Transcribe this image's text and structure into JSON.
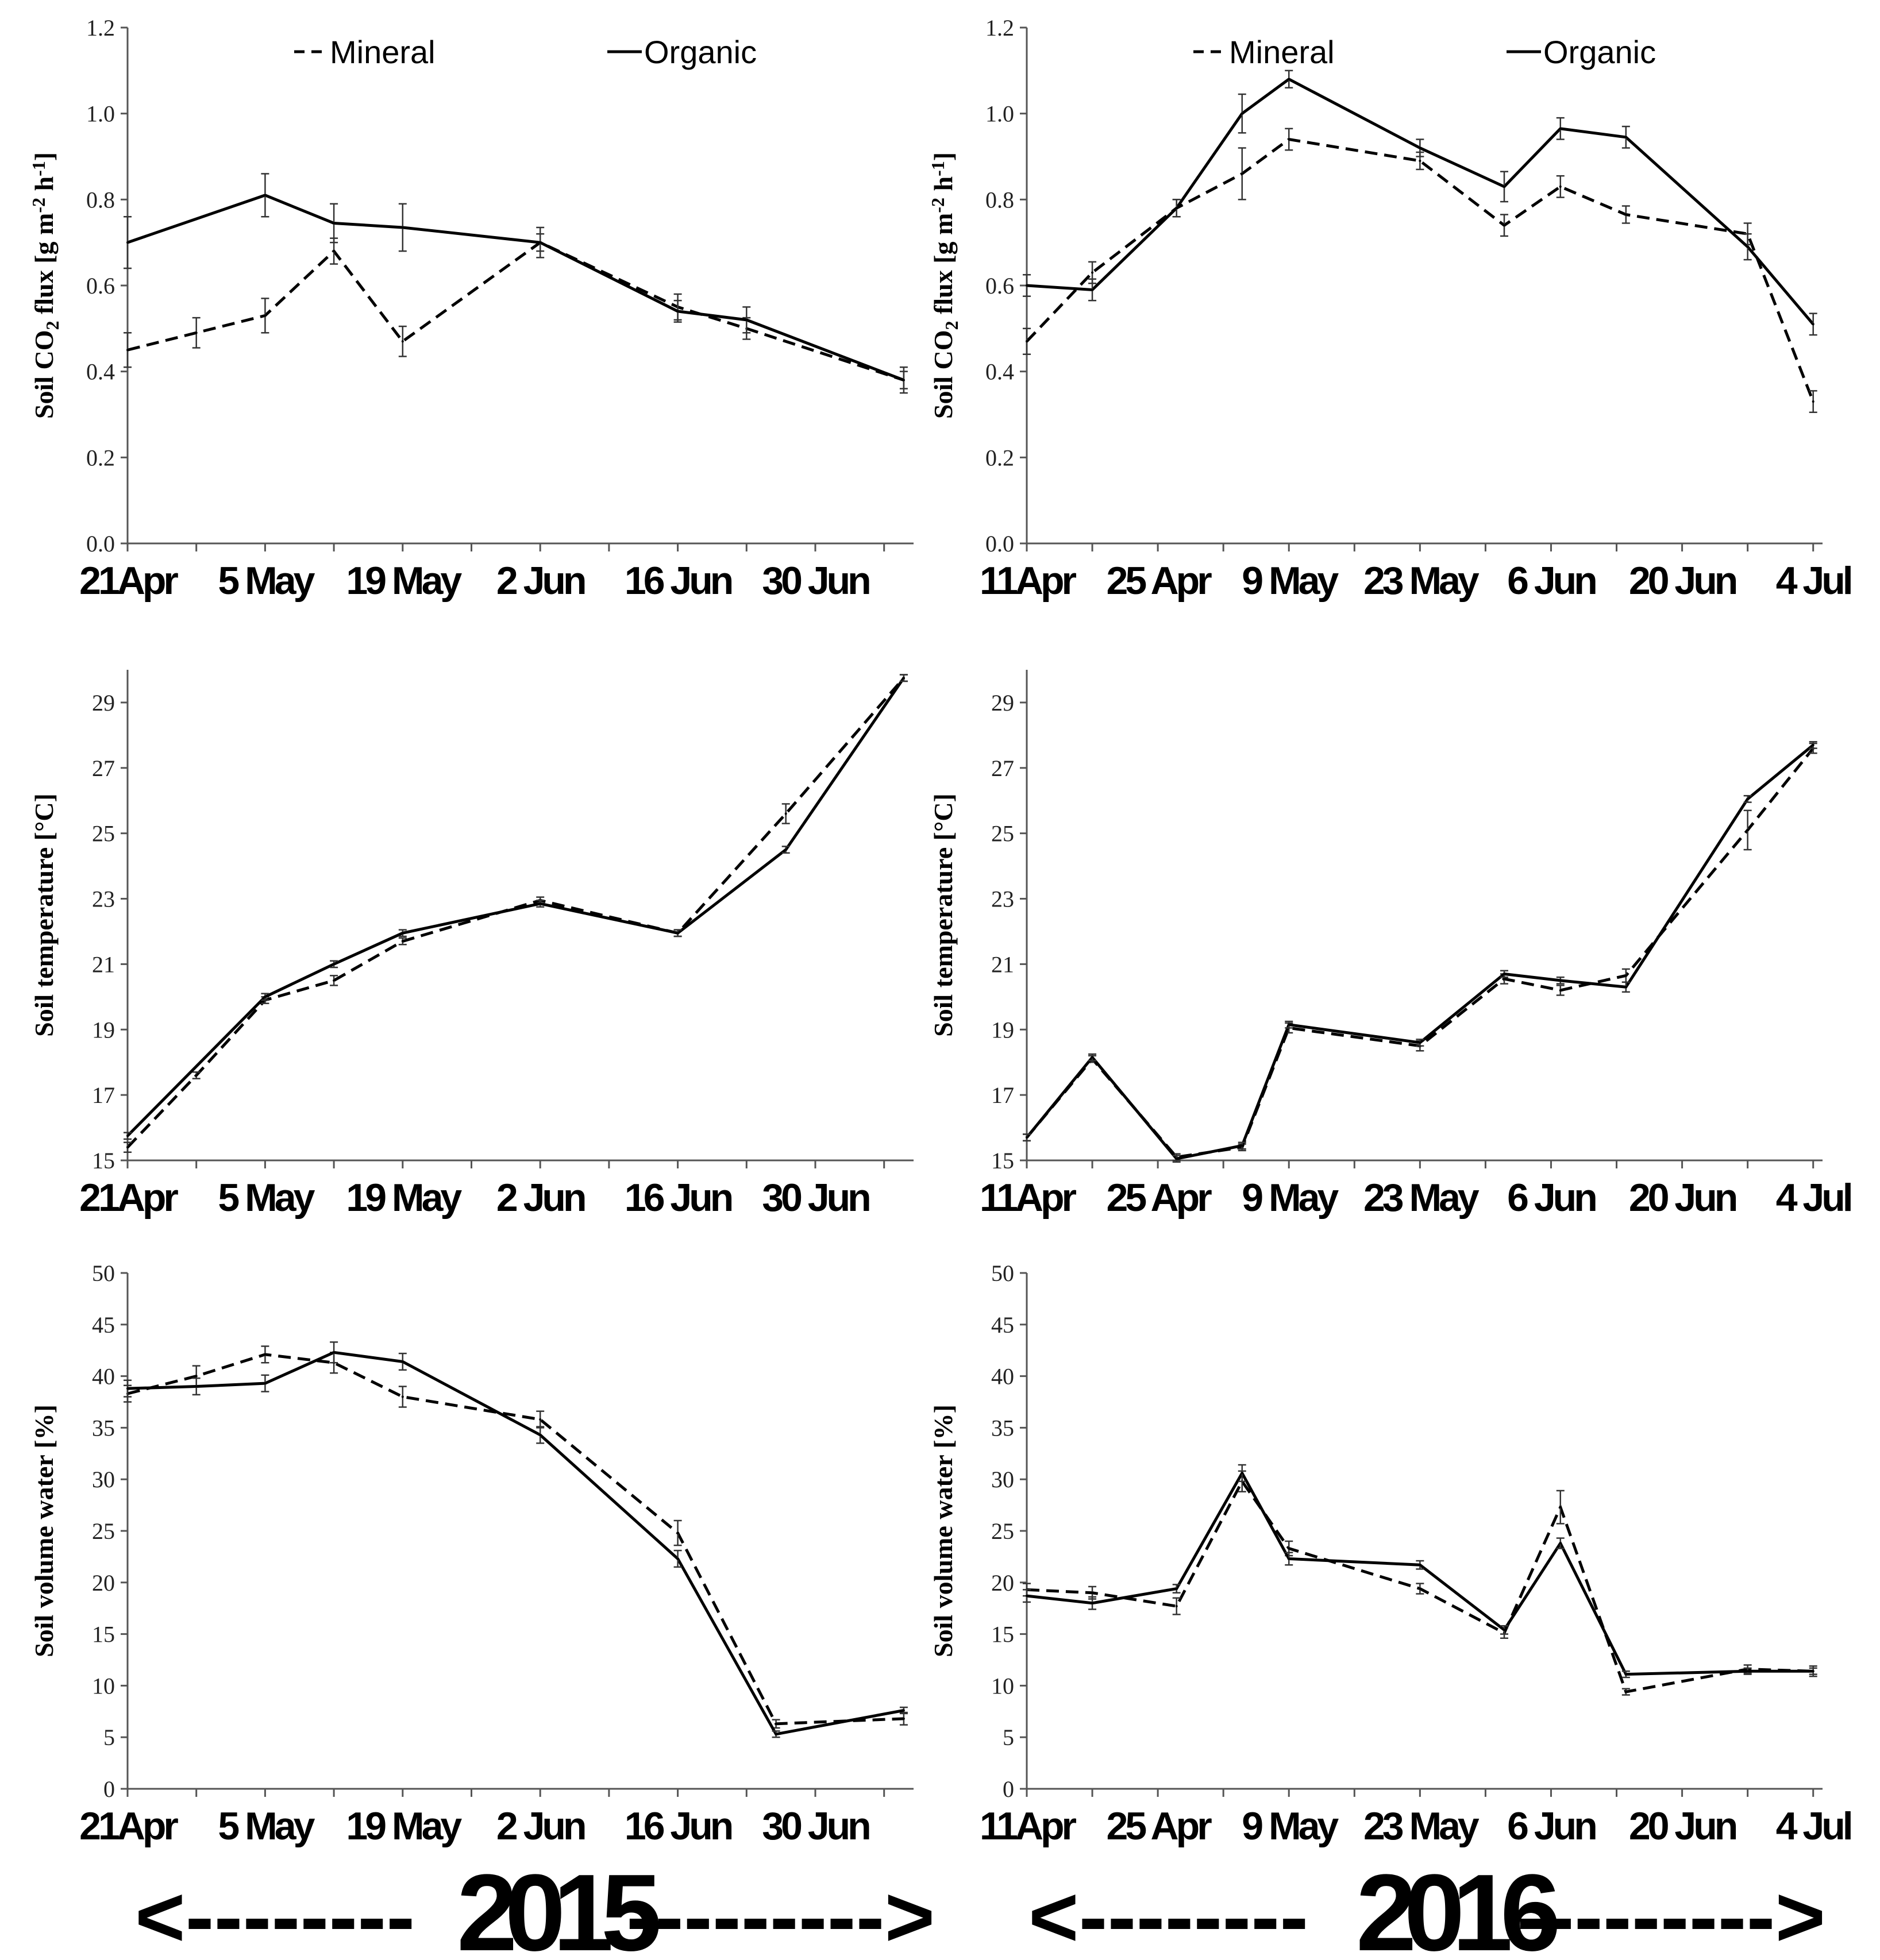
{
  "legend": {
    "mineral": "Mineral",
    "organic": "Organic"
  },
  "years": [
    {
      "label": "2015",
      "arrow_left": "<--------",
      "arrow_right": "--------->"
    },
    {
      "label": "2016",
      "arrow_left": "<--------",
      "arrow_right": "--------->"
    }
  ],
  "colors": {
    "line": "#000000",
    "axis": "#555555"
  },
  "chart_data": [
    {
      "id": "co2-2015",
      "type": "line",
      "year": "2015",
      "ylabel_main": "Soil CO",
      "ylabel_sub": "2",
      "ylabel_rest": " flux [g m",
      "ylabel_sup1": "-2",
      "ylabel_mid": " h",
      "ylabel_sup2": "-1",
      "ylabel_end": "]",
      "xlim": [
        0,
        80
      ],
      "ylim": [
        0,
        1.2
      ],
      "yticks": [
        "0.0",
        "0.2",
        "0.4",
        "0.6",
        "0.8",
        "1.0",
        "1.2"
      ],
      "ytick_values": [
        0,
        0.2,
        0.4,
        0.6,
        0.8,
        1.0,
        1.2
      ],
      "xtick_positions": [
        0,
        7,
        14,
        21,
        28,
        35,
        42,
        49,
        56,
        63,
        70,
        77
      ],
      "xlabels": [
        "21Apr",
        "5 May",
        "19 May",
        "2 Jun",
        "16 Jun",
        "30 Jun"
      ],
      "xlabel_positions": [
        0,
        14,
        28,
        42,
        56,
        70
      ],
      "series": [
        {
          "name": "Mineral",
          "dash": true,
          "x": [
            0,
            7,
            14,
            21,
            28,
            42,
            56,
            63,
            79
          ],
          "y": [
            0.45,
            0.49,
            0.53,
            0.68,
            0.47,
            0.7,
            0.55,
            0.5,
            0.38
          ],
          "err": [
            0.04,
            0.035,
            0.04,
            0.03,
            0.035,
            0.02,
            0.03,
            0.025,
            0.03
          ]
        },
        {
          "name": "Organic",
          "dash": false,
          "x": [
            0,
            14,
            21,
            28,
            42,
            56,
            63,
            79
          ],
          "y": [
            0.7,
            0.81,
            0.745,
            0.735,
            0.7,
            0.54,
            0.52,
            0.38
          ],
          "err": [
            0.06,
            0.05,
            0.045,
            0.055,
            0.035,
            0.025,
            0.03,
            0.02
          ]
        }
      ]
    },
    {
      "id": "co2-2016",
      "type": "line",
      "year": "2016",
      "ylabel_main": "Soil CO",
      "ylabel_sub": "2",
      "ylabel_rest": " flux [g m",
      "ylabel_sup1": "-2",
      "ylabel_mid": " h",
      "ylabel_sup2": "-1",
      "ylabel_end": "]",
      "xlim": [
        0,
        85
      ],
      "ylim": [
        0,
        1.2
      ],
      "yticks": [
        "0.0",
        "0.2",
        "0.4",
        "0.6",
        "0.8",
        "1.0",
        "1.2"
      ],
      "ytick_values": [
        0,
        0.2,
        0.4,
        0.6,
        0.8,
        1.0,
        1.2
      ],
      "xtick_positions": [
        0,
        7,
        14,
        21,
        28,
        35,
        42,
        49,
        56,
        63,
        70,
        77,
        84
      ],
      "xlabels": [
        "11Apr",
        "25 Apr",
        "9 May",
        "23 May",
        "6 Jun",
        "20 Jun",
        "4 Jul"
      ],
      "xlabel_positions": [
        0,
        14,
        28,
        42,
        56,
        70,
        84
      ],
      "series": [
        {
          "name": "Mineral",
          "dash": true,
          "x": [
            0,
            7,
            16,
            23,
            28,
            42,
            51,
            57,
            64,
            77,
            84
          ],
          "y": [
            0.47,
            0.63,
            0.78,
            0.86,
            0.94,
            0.89,
            0.74,
            0.83,
            0.765,
            0.72,
            0.33
          ],
          "err": [
            0.03,
            0.025,
            0.02,
            0.06,
            0.025,
            0.02,
            0.025,
            0.025,
            0.02,
            0.025,
            0.025
          ]
        },
        {
          "name": "Organic",
          "dash": false,
          "x": [
            0,
            7,
            16,
            23,
            28,
            42,
            51,
            57,
            64,
            77,
            84
          ],
          "y": [
            0.6,
            0.59,
            0.78,
            1.0,
            1.08,
            0.92,
            0.83,
            0.965,
            0.945,
            0.69,
            0.51
          ],
          "err": [
            0.025,
            0.025,
            0.02,
            0.045,
            0.02,
            0.02,
            0.035,
            0.025,
            0.025,
            0.03,
            0.025
          ]
        }
      ]
    },
    {
      "id": "temp-2015",
      "type": "line",
      "year": "2015",
      "ylabel": "Soil temperature [°C]",
      "xlim": [
        0,
        80
      ],
      "ylim": [
        15,
        30
      ],
      "yticks": [
        "15",
        "17",
        "19",
        "21",
        "23",
        "25",
        "27",
        "29"
      ],
      "ytick_values": [
        15,
        17,
        19,
        21,
        23,
        25,
        27,
        29
      ],
      "xtick_positions": [
        0,
        7,
        14,
        21,
        28,
        35,
        42,
        49,
        56,
        63,
        70,
        77
      ],
      "xlabels": [
        "21Apr",
        "5 May",
        "19 May",
        "2 Jun",
        "16 Jun",
        "30 Jun"
      ],
      "xlabel_positions": [
        0,
        14,
        28,
        42,
        56,
        70
      ],
      "series": [
        {
          "name": "Mineral",
          "dash": true,
          "x": [
            0,
            7,
            14,
            21,
            28,
            42,
            56,
            67,
            79
          ],
          "y": [
            15.4,
            17.6,
            19.9,
            20.5,
            21.7,
            22.95,
            21.95,
            25.6,
            29.75
          ],
          "err": [
            0.15,
            0.1,
            0.1,
            0.15,
            0.1,
            0.1,
            0.1,
            0.3,
            0.1
          ]
        },
        {
          "name": "Organic",
          "dash": false,
          "x": [
            0,
            14,
            21,
            28,
            42,
            56,
            67,
            79
          ],
          "y": [
            15.75,
            20.0,
            21.0,
            21.95,
            22.85,
            21.95,
            24.5,
            29.75
          ],
          "err": [
            0.1,
            0.1,
            0.1,
            0.1,
            0.1,
            0.1,
            0.1,
            0.1
          ]
        }
      ]
    },
    {
      "id": "temp-2016",
      "type": "line",
      "year": "2016",
      "ylabel": "Soil temperature [°C]",
      "xlim": [
        0,
        85
      ],
      "ylim": [
        15,
        30
      ],
      "yticks": [
        "15",
        "17",
        "19",
        "21",
        "23",
        "25",
        "27",
        "29"
      ],
      "ytick_values": [
        15,
        17,
        19,
        21,
        23,
        25,
        27,
        29
      ],
      "xtick_positions": [
        0,
        7,
        14,
        21,
        28,
        35,
        42,
        49,
        56,
        63,
        70,
        77,
        84
      ],
      "xlabels": [
        "11Apr",
        "25 Apr",
        "9 May",
        "23 May",
        "6 Jun",
        "20 Jun",
        "4 Jul"
      ],
      "xlabel_positions": [
        0,
        14,
        28,
        42,
        56,
        70,
        84
      ],
      "series": [
        {
          "name": "Mineral",
          "dash": true,
          "x": [
            0,
            7,
            16,
            23,
            28,
            42,
            51,
            57,
            64,
            77,
            84
          ],
          "y": [
            15.7,
            18.1,
            15.1,
            15.4,
            19.05,
            18.5,
            20.55,
            20.2,
            20.65,
            25.1,
            27.6
          ],
          "err": [
            0.1,
            0.1,
            0.1,
            0.1,
            0.15,
            0.15,
            0.15,
            0.15,
            0.2,
            0.6,
            0.15
          ]
        },
        {
          "name": "Organic",
          "dash": false,
          "x": [
            0,
            7,
            16,
            23,
            28,
            42,
            51,
            57,
            64,
            77,
            84
          ],
          "y": [
            15.7,
            18.15,
            15.05,
            15.45,
            19.15,
            18.6,
            20.7,
            20.5,
            20.3,
            26.05,
            27.7
          ],
          "err": [
            0.1,
            0.1,
            0.1,
            0.1,
            0.1,
            0.1,
            0.1,
            0.1,
            0.15,
            0.1,
            0.1
          ]
        }
      ]
    },
    {
      "id": "water-2015",
      "type": "line",
      "year": "2015",
      "ylabel": "Soil volume water [%]",
      "xlim": [
        0,
        80
      ],
      "ylim": [
        0,
        50
      ],
      "yticks": [
        "0",
        "5",
        "10",
        "15",
        "20",
        "25",
        "30",
        "35",
        "40",
        "45",
        "50"
      ],
      "ytick_values": [
        0,
        5,
        10,
        15,
        20,
        25,
        30,
        35,
        40,
        45,
        50
      ],
      "xtick_positions": [
        0,
        7,
        14,
        21,
        28,
        35,
        42,
        49,
        56,
        63,
        70,
        77
      ],
      "xlabels": [
        "21Apr",
        "5 May",
        "19 May",
        "2 Jun",
        "16 Jun",
        "30 Jun"
      ],
      "xlabel_positions": [
        0,
        14,
        28,
        42,
        56,
        70
      ],
      "series": [
        {
          "name": "Mineral",
          "dash": true,
          "x": [
            0,
            7,
            14,
            21,
            28,
            42,
            56,
            66,
            79
          ],
          "y": [
            38.3,
            40.0,
            42.1,
            41.3,
            38.0,
            35.8,
            24.8,
            6.3,
            6.8
          ],
          "err": [
            0.8,
            1.0,
            0.8,
            1.0,
            1.0,
            0.8,
            1.2,
            0.4,
            0.6
          ]
        },
        {
          "name": "Organic",
          "dash": false,
          "x": [
            0,
            7,
            14,
            21,
            28,
            42,
            56,
            66,
            79
          ],
          "y": [
            38.8,
            39.0,
            39.3,
            42.3,
            41.4,
            34.3,
            22.3,
            5.3,
            7.6
          ],
          "err": [
            0.8,
            0.8,
            0.8,
            1.0,
            0.8,
            0.8,
            0.8,
            0.3,
            0.3
          ]
        }
      ]
    },
    {
      "id": "water-2016",
      "type": "line",
      "year": "2016",
      "ylabel": "Soil volume water [%]",
      "xlim": [
        0,
        85
      ],
      "ylim": [
        0,
        50
      ],
      "yticks": [
        "0",
        "5",
        "10",
        "15",
        "20",
        "25",
        "30",
        "35",
        "40",
        "45",
        "50"
      ],
      "ytick_values": [
        0,
        5,
        10,
        15,
        20,
        25,
        30,
        35,
        40,
        45,
        50
      ],
      "xtick_positions": [
        0,
        7,
        14,
        21,
        28,
        35,
        42,
        49,
        56,
        63,
        70,
        77,
        84
      ],
      "xlabels": [
        "11Apr",
        "25 Apr",
        "9 May",
        "23 May",
        "6 Jun",
        "20 Jun",
        "4 Jul"
      ],
      "xlabel_positions": [
        0,
        14,
        28,
        42,
        56,
        70,
        84
      ],
      "series": [
        {
          "name": "Mineral",
          "dash": true,
          "x": [
            0,
            7,
            16,
            23,
            28,
            42,
            51,
            57,
            64,
            77,
            84
          ],
          "y": [
            19.3,
            19.0,
            17.7,
            29.8,
            23.3,
            19.4,
            15.1,
            27.3,
            9.4,
            11.6,
            11.4
          ],
          "err": [
            0.6,
            0.6,
            0.8,
            1.0,
            0.7,
            0.5,
            0.5,
            1.6,
            0.3,
            0.4,
            0.5
          ]
        },
        {
          "name": "Organic",
          "dash": false,
          "x": [
            0,
            7,
            16,
            23,
            28,
            42,
            51,
            57,
            64,
            77,
            84
          ],
          "y": [
            18.7,
            18.0,
            19.4,
            30.6,
            22.3,
            21.7,
            15.4,
            23.8,
            11.1,
            11.4,
            11.4
          ],
          "err": [
            0.6,
            0.6,
            0.4,
            0.8,
            0.6,
            0.4,
            0.4,
            0.5,
            0.3,
            0.3,
            0.3
          ]
        }
      ]
    }
  ]
}
